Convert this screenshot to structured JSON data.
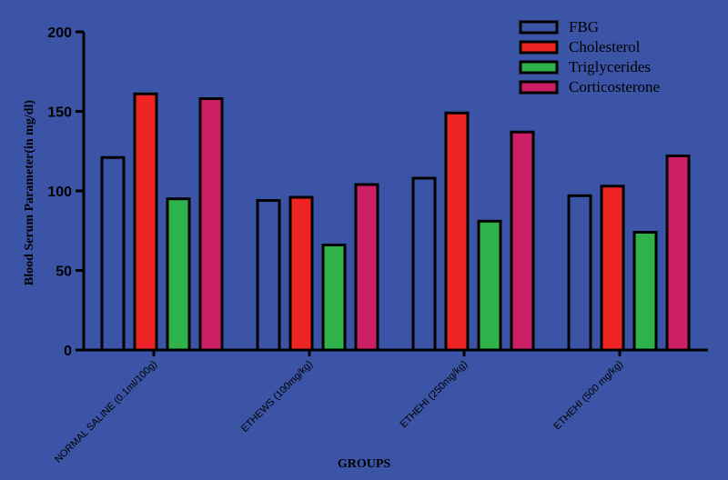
{
  "chart_data": {
    "type": "bar",
    "title": "",
    "xlabel": "GROUPS",
    "ylabel": "Blood Serum Parameter(in mg/dl)",
    "ylim": [
      0,
      200
    ],
    "yticks": [
      0,
      50,
      100,
      150,
      200
    ],
    "categories": [
      "NORMAL SALINE (0.1ml/100g)",
      "ETHEWS (100mg/kg)",
      "ETHEHI (250mg/kg)",
      "ETHEHI (500 mg/kg)"
    ],
    "series": [
      {
        "name": "FBG",
        "color": "#3b54a5",
        "values": [
          121,
          94,
          108,
          97
        ]
      },
      {
        "name": "Cholesterol",
        "color": "#ee2424",
        "values": [
          161,
          96,
          149,
          103
        ]
      },
      {
        "name": "Triglycerides",
        "color": "#2fb24a",
        "values": [
          95,
          66,
          81,
          74
        ]
      },
      {
        "name": "Corticosterone",
        "color": "#cc1f66",
        "values": [
          158,
          104,
          137,
          122
        ]
      }
    ],
    "legend_position": "top-right",
    "grid": false
  }
}
